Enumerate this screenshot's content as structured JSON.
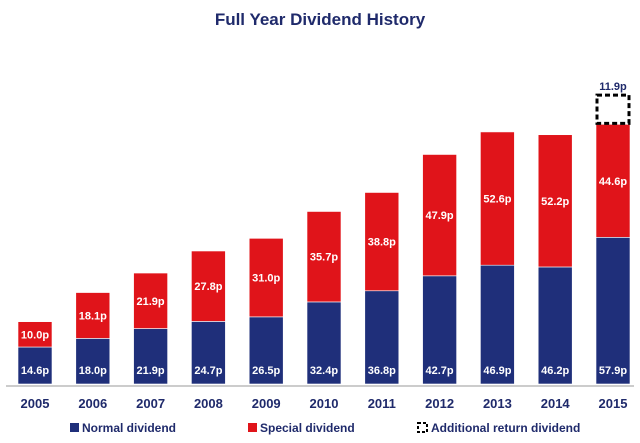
{
  "chart_data": {
    "type": "bar",
    "stacked": true,
    "title": "Full Year Dividend History",
    "categories": [
      "2005",
      "2006",
      "2007",
      "2008",
      "2009",
      "2010",
      "2011",
      "2012",
      "2013",
      "2014",
      "2015"
    ],
    "series": [
      {
        "name": "Normal dividend",
        "color": "#1f2f7a",
        "values": [
          14.6,
          18.0,
          21.9,
          24.7,
          26.5,
          32.4,
          36.8,
          42.7,
          46.9,
          46.2,
          57.9
        ],
        "labels": [
          "14.6p",
          "18.0p",
          "21.9p",
          "24.7p",
          "26.5p",
          "32.4p",
          "36.8p",
          "42.7p",
          "46.9p",
          "46.2p",
          "57.9p"
        ]
      },
      {
        "name": "Special dividend",
        "color": "#e0141a",
        "values": [
          10.0,
          18.1,
          21.9,
          27.8,
          31.0,
          35.7,
          38.8,
          47.9,
          52.6,
          52.2,
          44.6
        ],
        "labels": [
          "10.0p",
          "18.1p",
          "21.9p",
          "27.8p",
          "31.0p",
          "35.7p",
          "38.8p",
          "47.9p",
          "52.6p",
          "52.2p",
          "44.6p"
        ]
      },
      {
        "name": "Additional return dividend",
        "color": "#000000",
        "values": [
          0,
          0,
          0,
          0,
          0,
          0,
          0,
          0,
          0,
          0,
          11.9
        ],
        "labels": [
          "",
          "",
          "",
          "",
          "",
          "",
          "",
          "",
          "",
          "",
          "11.9p"
        ]
      }
    ],
    "ylim": [
      0,
      120
    ],
    "grid": false,
    "legend_position": "bottom"
  }
}
